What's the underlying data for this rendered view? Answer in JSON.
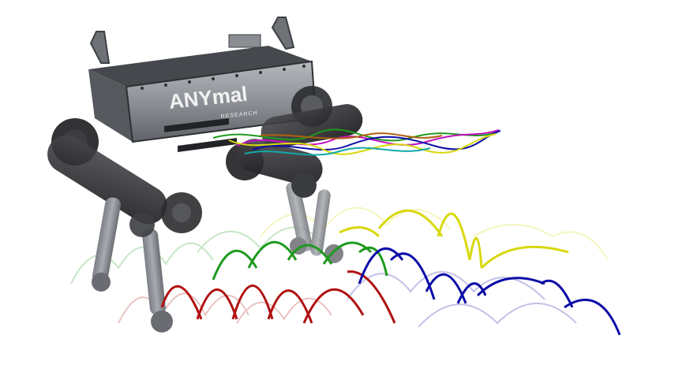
{
  "robot": {
    "logo_text": "ANYmal",
    "logo_subtext": "RESEARCH",
    "body_color": "#8c8f95",
    "leg_color": "#1f1f22"
  },
  "trajectory_colors": {
    "red": "#b01010",
    "green": "#1f9a1f",
    "yellow": "#d8d80c",
    "blue": "#0c0ca8"
  }
}
